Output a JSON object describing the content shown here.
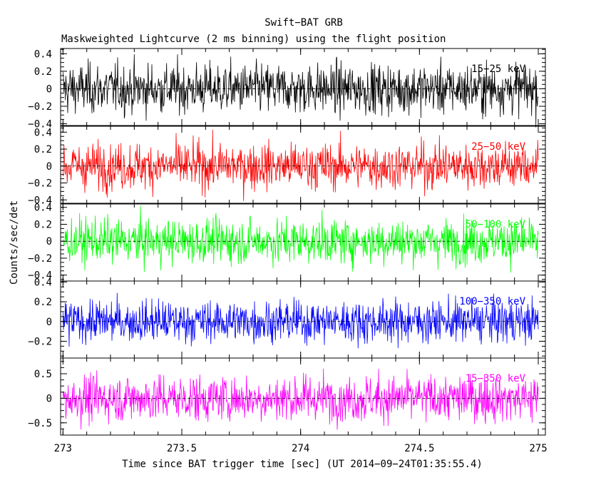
{
  "title": "Swift−BAT GRB",
  "subtitle": "Maskweighted Lightcurve (2 ms binning) using the flight position",
  "ylabel": "Counts/sec/det",
  "xlabel": "Time since BAT trigger time [sec] (UT 2014−09−24T01:35:55.4)",
  "chart_data": [
    {
      "type": "line",
      "series": [
        {
          "name": "15−25 keV",
          "color": "#000000",
          "amplitude": 0.23
        }
      ],
      "xlim": [
        272.99,
        275.03
      ],
      "ylim": [
        -0.42,
        0.46
      ],
      "yticks": [
        -0.4,
        -0.2,
        0,
        0.2,
        0.4
      ],
      "ytick_labels": [
        "−0.4",
        "−0.2",
        "0",
        "0.2",
        "0.4"
      ]
    },
    {
      "type": "line",
      "series": [
        {
          "name": "25−50 keV",
          "color": "#ff0000",
          "amplitude": 0.22
        }
      ],
      "xlim": [
        272.99,
        275.03
      ],
      "ylim": [
        -0.44,
        0.47
      ],
      "yticks": [
        -0.4,
        -0.2,
        0,
        0.2,
        0.4
      ],
      "ytick_labels": [
        "−0.4",
        "−0.2",
        "0",
        "0.2",
        "0.4"
      ]
    },
    {
      "type": "line",
      "series": [
        {
          "name": "50−100 keV",
          "color": "#00ff00",
          "amplitude": 0.21
        }
      ],
      "xlim": [
        272.99,
        275.03
      ],
      "ylim": [
        -0.47,
        0.44
      ],
      "yticks": [
        -0.4,
        -0.2,
        0,
        0.2,
        0.4
      ],
      "ytick_labels": [
        "−0.4",
        "−0.2",
        "0",
        "0.2",
        "0.4"
      ]
    },
    {
      "type": "line",
      "series": [
        {
          "name": "100−350 keV",
          "color": "#0000ff",
          "amplitude": 0.17
        }
      ],
      "xlim": [
        272.99,
        275.03
      ],
      "ylim": [
        -0.37,
        0.41
      ],
      "yticks": [
        -0.2,
        0,
        0.2,
        0.4
      ],
      "ytick_labels": [
        "−0.2",
        "0",
        "0.2",
        "0.4"
      ]
    },
    {
      "type": "line",
      "series": [
        {
          "name": "15−350 keV",
          "color": "#ff00ff",
          "amplitude": 0.38
        }
      ],
      "xlim": [
        272.99,
        275.03
      ],
      "ylim": [
        -0.75,
        0.82
      ],
      "yticks": [
        -0.5,
        0,
        0.5
      ],
      "ytick_labels": [
        "−0.5",
        "0",
        "0.5"
      ]
    }
  ],
  "xaxis": {
    "ticks": [
      273,
      273.5,
      274,
      274.5,
      275
    ],
    "tick_labels": [
      "273",
      "273.5",
      "274",
      "274.5",
      "275"
    ],
    "minor_step": 0.1
  },
  "binning_sec": 0.002,
  "x_start": 273.0,
  "x_end": 275.0
}
